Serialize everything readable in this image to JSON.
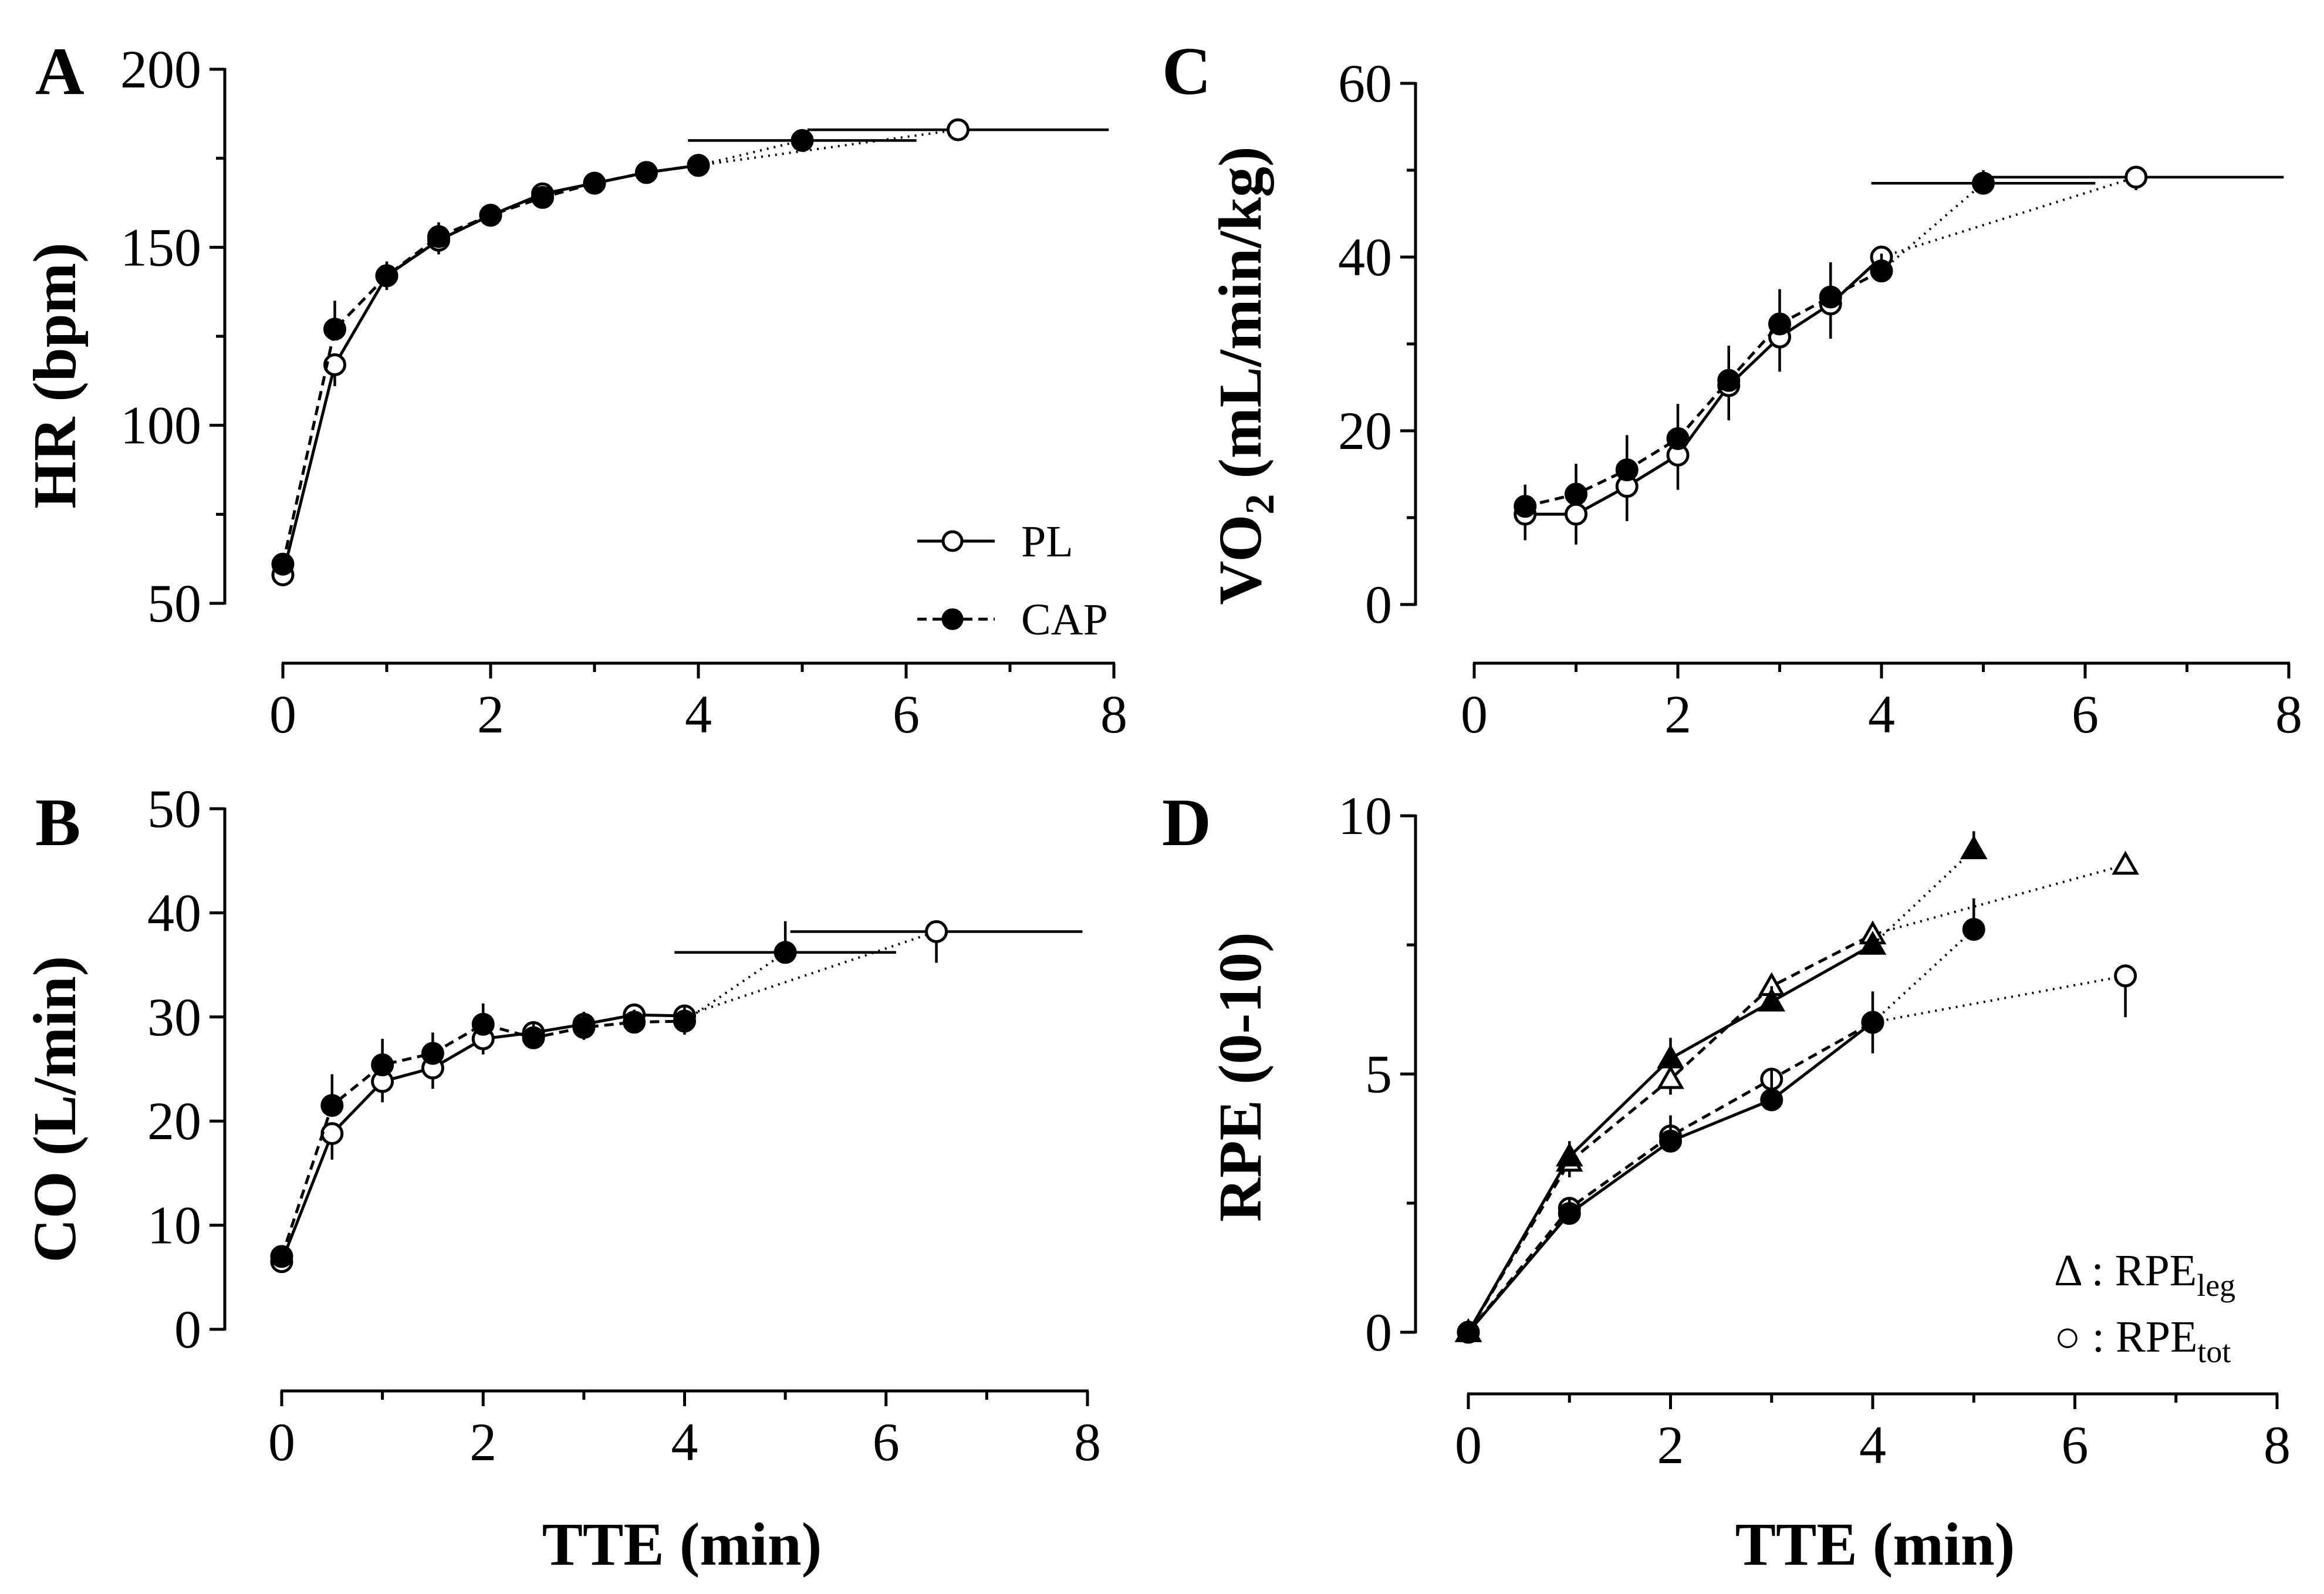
{
  "figure": {
    "x_title": "TTE (min)",
    "legend_pl": "PL",
    "legend_cap": "CAP",
    "legend_leg_prefix": "Δ : RPE",
    "legend_leg_sub": "leg",
    "legend_tot_prefix": "○ : RPE",
    "legend_tot_sub": "tot"
  },
  "chart_data": [
    {
      "panel": "A",
      "type": "line",
      "ylabel": "HR (bpm)",
      "xlabel": "",
      "xlim": [
        0,
        8
      ],
      "ylim": [
        50,
        200
      ],
      "xticks": [
        0,
        2,
        4,
        6,
        8
      ],
      "yticks": [
        50,
        100,
        150,
        200
      ],
      "legend_position": "bottom-right",
      "series": [
        {
          "name": "PL",
          "marker": "open-circle",
          "line": "solid",
          "x": [
            0,
            0.5,
            1,
            1.5,
            2,
            2.5,
            3,
            3.5,
            4
          ],
          "y": [
            58,
            117,
            142,
            152,
            159,
            165,
            168,
            171,
            173
          ],
          "err": [
            2,
            6,
            4,
            4,
            2,
            2,
            2,
            2,
            2
          ],
          "end_x": 6.5,
          "end_y": 183,
          "end_xerr": 1.45,
          "end_yerr": 1
        },
        {
          "name": "CAP",
          "marker": "filled-circle",
          "line": "dashed",
          "x": [
            0,
            0.5,
            1,
            1.5,
            2,
            2.5,
            3,
            3.5,
            4
          ],
          "y": [
            61,
            127,
            142,
            153,
            159,
            164,
            168,
            171,
            173
          ],
          "err": [
            2,
            8,
            4,
            4,
            2,
            2,
            2,
            2,
            2
          ],
          "end_x": 5.0,
          "end_y": 180,
          "end_xerr": 1.1,
          "end_yerr": 1
        }
      ]
    },
    {
      "panel": "B",
      "type": "line",
      "ylabel": "CO (L/min)",
      "xlabel": "TTE (min)",
      "xlim": [
        0,
        8
      ],
      "ylim": [
        0,
        50
      ],
      "xticks": [
        0,
        2,
        4,
        6,
        8
      ],
      "yticks": [
        0,
        10,
        20,
        30,
        40,
        50
      ],
      "series": [
        {
          "name": "PL",
          "marker": "open-circle",
          "line": "solid",
          "x": [
            0,
            0.5,
            1,
            1.5,
            2,
            2.5,
            3,
            3.5,
            4
          ],
          "y": [
            6.5,
            18.8,
            23.8,
            25.1,
            27.9,
            28.5,
            29.3,
            30.2,
            30.1
          ],
          "err": [
            1,
            2.5,
            2,
            2,
            1.5,
            1.5,
            1.5,
            1.2,
            1.8
          ],
          "end_x": 6.5,
          "end_y": 38.2,
          "end_xerr": 1.45,
          "end_yerr": 3
        },
        {
          "name": "CAP",
          "marker": "filled-circle",
          "line": "dashed",
          "x": [
            0,
            0.5,
            1,
            1.5,
            2,
            2.5,
            3,
            3.5,
            4
          ],
          "y": [
            7,
            21.5,
            25.4,
            26.5,
            29.3,
            28,
            29,
            29.5,
            29.6
          ],
          "err": [
            1,
            3,
            2.5,
            2,
            2,
            1.5,
            1.5,
            1.2,
            1.5
          ],
          "end_x": 5.0,
          "end_y": 36.2,
          "end_xerr": 1.1,
          "end_yerr": 3
        }
      ]
    },
    {
      "panel": "C",
      "type": "line",
      "ylabel_main": "VO",
      "ylabel_sub": "2",
      "ylabel_rest": " (mL/min/kg)",
      "xlabel": "",
      "xlim": [
        0,
        8
      ],
      "ylim": [
        0,
        60
      ],
      "xticks": [
        0,
        2,
        4,
        6,
        8
      ],
      "yticks": [
        0,
        20,
        40,
        60
      ],
      "series": [
        {
          "name": "PL",
          "marker": "open-circle",
          "line": "solid",
          "x": [
            0.5,
            1,
            1.5,
            2,
            2.5,
            3,
            3.5,
            4
          ],
          "y": [
            10.4,
            10.4,
            13.6,
            17.2,
            25.2,
            30.8,
            34.6,
            40
          ],
          "err": [
            3,
            3.5,
            4,
            4,
            4,
            4,
            4,
            2
          ],
          "end_x": 6.5,
          "end_y": 49.2,
          "end_xerr": 1.45,
          "end_yerr": 1.5
        },
        {
          "name": "CAP",
          "marker": "filled-circle",
          "line": "dashed",
          "x": [
            0.5,
            1,
            1.5,
            2,
            2.5,
            3,
            3.5,
            4
          ],
          "y": [
            11.3,
            12.7,
            15.5,
            19.1,
            25.8,
            32.3,
            35.4,
            38.4
          ],
          "err": [
            2.5,
            3.5,
            4,
            4,
            4,
            4,
            4,
            2
          ],
          "end_x": 5.0,
          "end_y": 48.5,
          "end_xerr": 1.1,
          "end_yerr": 1.5
        }
      ]
    },
    {
      "panel": "D",
      "type": "line",
      "ylabel": "RPE (0-10)",
      "xlabel": "TTE (min)",
      "xlim": [
        0,
        8
      ],
      "ylim": [
        0,
        10
      ],
      "xticks": [
        0,
        2,
        4,
        6,
        8
      ],
      "yticks": [
        0,
        5,
        10
      ],
      "legend_position": "bottom-right",
      "series": [
        {
          "name": "RPEleg PL",
          "marker": "open-triangle",
          "line": "dashed",
          "x": [
            0,
            1,
            2,
            3,
            4
          ],
          "y": [
            0,
            3.3,
            4.9,
            6.7,
            7.7
          ],
          "err": [
            0,
            0.3,
            0.3,
            0.3,
            0.2
          ],
          "end_x": 6.5,
          "end_y": 9.05,
          "end_yerr": 0.15
        },
        {
          "name": "RPEleg CAP",
          "marker": "filled-triangle",
          "line": "solid",
          "x": [
            0,
            1,
            2,
            3,
            4
          ],
          "y": [
            0,
            3.4,
            5.3,
            6.4,
            7.5
          ],
          "err": [
            0,
            0.3,
            0.4,
            0.3,
            0.2
          ],
          "end_x": 5.0,
          "end_y": 9.35,
          "end_yerr": 0.35
        },
        {
          "name": "RPEtot PL",
          "marker": "open-circle",
          "line": "dashed",
          "x": [
            0,
            1,
            2,
            3,
            4
          ],
          "y": [
            0,
            2.4,
            3.8,
            4.9,
            6.0
          ],
          "err": [
            0,
            0.2,
            0.3,
            0.2,
            0.6
          ],
          "end_x": 6.5,
          "end_y": 6.9,
          "end_yerr": 0.8
        },
        {
          "name": "RPEtot CAP",
          "marker": "filled-circle",
          "line": "solid",
          "x": [
            0,
            1,
            2,
            3,
            4
          ],
          "y": [
            0,
            2.3,
            3.7,
            4.5,
            6.0
          ],
          "err": [
            0,
            0.3,
            0.5,
            0.6,
            0.6
          ],
          "end_x": 5.0,
          "end_y": 7.8,
          "end_yerr": 0.6
        }
      ]
    }
  ]
}
